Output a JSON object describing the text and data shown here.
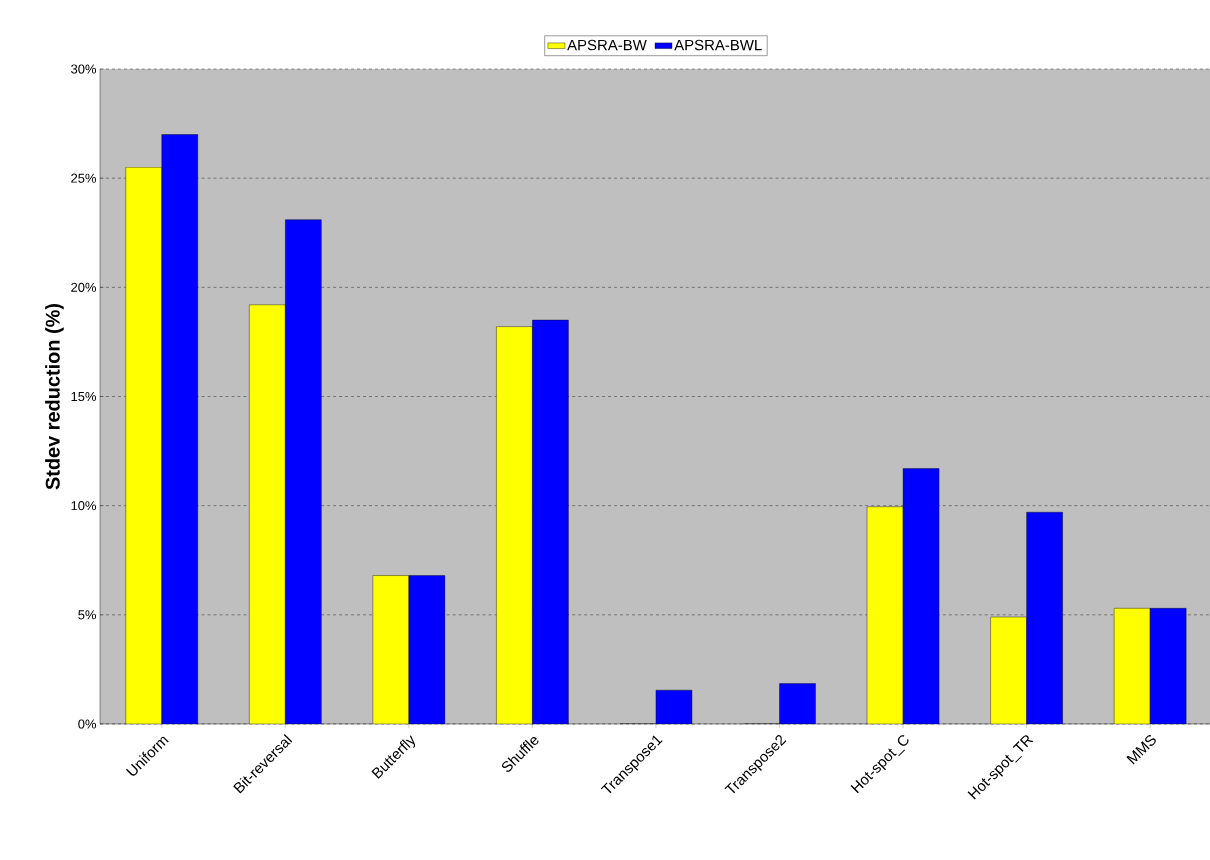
{
  "chart_data": {
    "type": "bar",
    "ylabel": "Stdev reduction (%)",
    "categories": [
      "Uniform",
      "Bit-reversal",
      "Butterfly",
      "Shuffle",
      "Transpose1",
      "Transpose2",
      "Hot-spot_C",
      "Hot-spot_TR",
      "MMS"
    ],
    "series": [
      {
        "name": "APSRA-BW",
        "color": "#ffff00",
        "values": [
          25.5,
          19.2,
          6.8,
          18.2,
          0,
          0,
          9.95,
          4.9,
          5.3
        ]
      },
      {
        "name": "APSRA-BWL",
        "color": "#0000ff",
        "values": [
          27.0,
          23.1,
          6.8,
          18.5,
          1.55,
          1.85,
          11.7,
          9.7,
          5.3
        ]
      }
    ],
    "ylim": [
      0,
      30
    ],
    "yticks": [
      {
        "value": 0,
        "label": "0%"
      },
      {
        "value": 5,
        "label": "5%"
      },
      {
        "value": 10,
        "label": "10%"
      },
      {
        "value": 15,
        "label": "15%"
      },
      {
        "value": 20,
        "label": "20%"
      },
      {
        "value": 25,
        "label": "25%"
      },
      {
        "value": 30,
        "label": "30%"
      }
    ],
    "grid": "y",
    "legend": "top"
  }
}
